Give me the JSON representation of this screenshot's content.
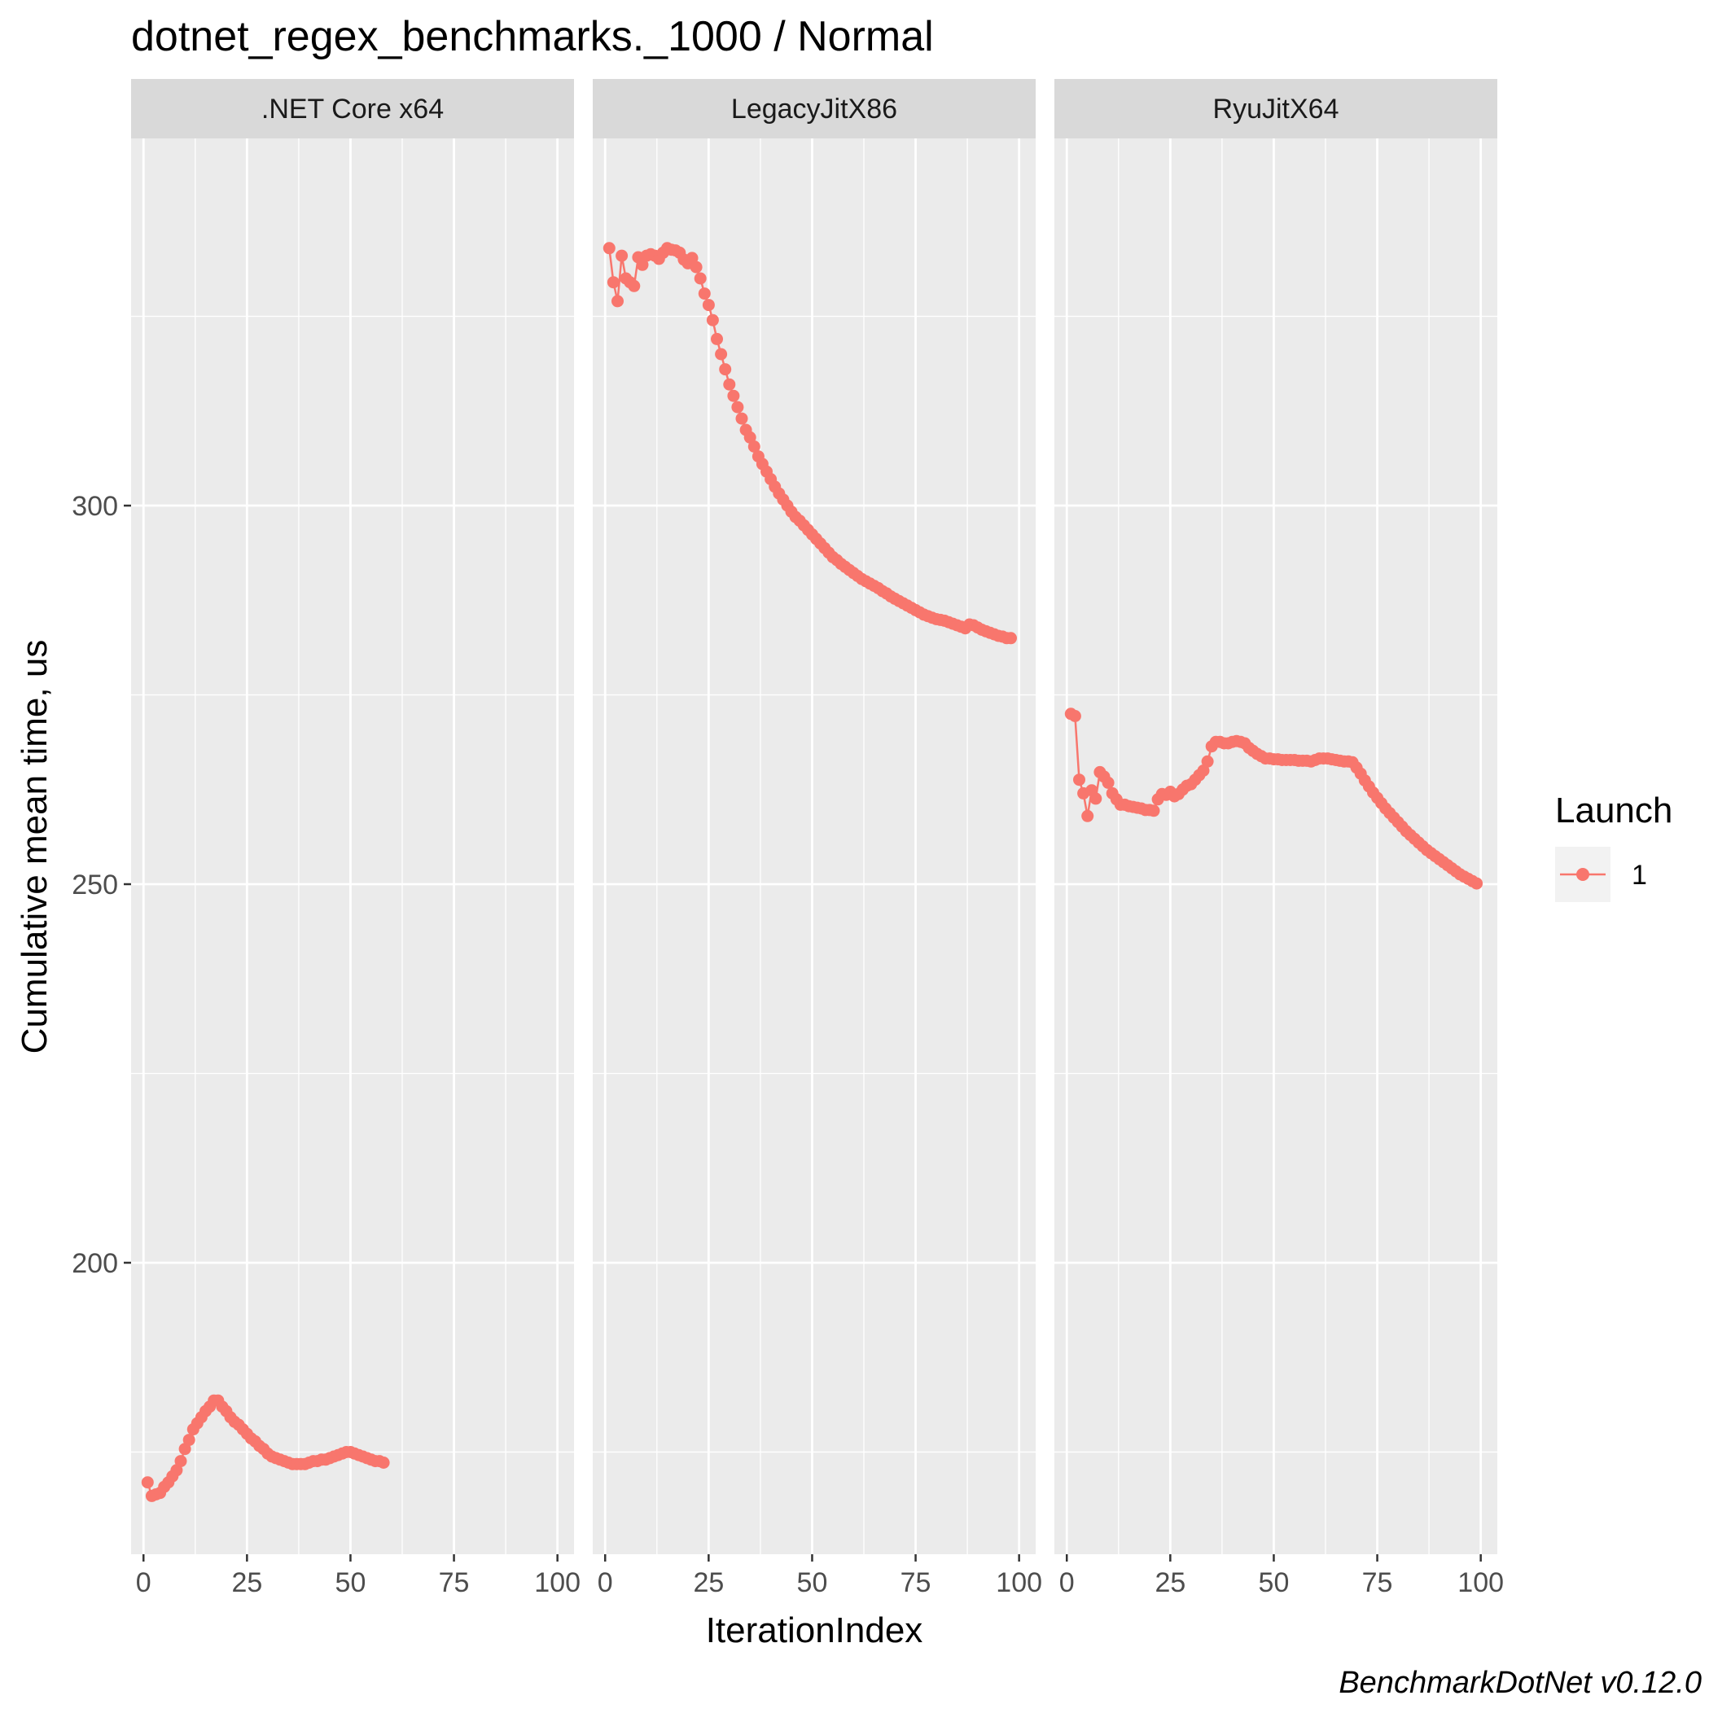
{
  "chart_data": {
    "type": "line",
    "title": "dotnet_regex_benchmarks._1000 / Normal",
    "xlabel": "IterationIndex",
    "ylabel": "Cumulative mean time, us",
    "caption": "BenchmarkDotNet v0.12.0",
    "xlim": [
      -3,
      104
    ],
    "ylim": [
      161.5,
      348.5
    ],
    "x_ticks": [
      0,
      25,
      50,
      75,
      100
    ],
    "x_tick_labels": [
      "0",
      "25",
      "50",
      "75",
      "100"
    ],
    "y_ticks": [
      200,
      250,
      300
    ],
    "y_tick_labels": [
      "200",
      "250",
      "300"
    ],
    "legend": {
      "title": "Launch",
      "position": "right",
      "entries": [
        {
          "label": "1",
          "color": "#F8766D"
        }
      ]
    },
    "series_color": "#F8766D",
    "grid": true,
    "facets": [
      {
        "label": ".NET Core x64",
        "series": [
          {
            "name": "1",
            "x": [
              1,
              2,
              3,
              4,
              5,
              6,
              7,
              8,
              9,
              10,
              11,
              12,
              13,
              14,
              15,
              16,
              17,
              18,
              19,
              20,
              21,
              22,
              23,
              24,
              25,
              26,
              27,
              28,
              29,
              30,
              31,
              32,
              33,
              34,
              35,
              36,
              37,
              38,
              39,
              40,
              41,
              42,
              43,
              44,
              45,
              46,
              47,
              48,
              49,
              50,
              51,
              52,
              53,
              54,
              55,
              56,
              57,
              58
            ],
            "y": [
              171.0,
              169.2,
              169.4,
              169.6,
              170.4,
              171.0,
              171.8,
              172.6,
              173.8,
              175.4,
              176.6,
              178.0,
              178.8,
              179.6,
              180.4,
              181.0,
              181.8,
              181.8,
              181.0,
              180.4,
              179.6,
              179.0,
              178.6,
              178.0,
              177.4,
              176.8,
              176.4,
              175.8,
              175.4,
              174.8,
              174.4,
              174.2,
              174.0,
              173.8,
              173.6,
              173.4,
              173.4,
              173.4,
              173.4,
              173.6,
              173.8,
              173.8,
              174.0,
              174.0,
              174.2,
              174.4,
              174.6,
              174.8,
              175.0,
              175.0,
              174.8,
              174.6,
              174.4,
              174.2,
              174.0,
              173.8,
              173.8,
              173.6
            ]
          }
        ]
      },
      {
        "label": "LegacyJitX86",
        "series": [
          {
            "name": "1",
            "x": [
              1,
              2,
              3,
              4,
              5,
              6,
              7,
              8,
              9,
              10,
              11,
              12,
              13,
              14,
              15,
              16,
              17,
              18,
              19,
              20,
              21,
              22,
              23,
              24,
              25,
              26,
              27,
              28,
              29,
              30,
              31,
              32,
              33,
              34,
              35,
              36,
              37,
              38,
              39,
              40,
              41,
              42,
              43,
              44,
              45,
              46,
              47,
              48,
              49,
              50,
              51,
              52,
              53,
              54,
              55,
              56,
              57,
              58,
              59,
              60,
              61,
              62,
              63,
              64,
              65,
              66,
              67,
              68,
              69,
              70,
              71,
              72,
              73,
              74,
              75,
              76,
              77,
              78,
              79,
              80,
              81,
              82,
              83,
              84,
              85,
              86,
              87,
              88,
              89,
              90,
              91,
              92,
              93,
              94,
              95,
              96,
              97,
              98
            ],
            "y": [
              334.0,
              329.5,
              327.0,
              333.0,
              330.0,
              329.5,
              329.0,
              332.8,
              331.8,
              333.0,
              333.2,
              333.0,
              332.6,
              333.4,
              334.0,
              333.8,
              333.7,
              333.4,
              332.5,
              332.0,
              332.7,
              331.5,
              330.0,
              328.0,
              326.5,
              324.5,
              322.0,
              320.0,
              318.0,
              316.0,
              314.5,
              313.0,
              311.5,
              310.0,
              309.0,
              307.8,
              306.5,
              305.5,
              304.5,
              303.5,
              302.5,
              301.6,
              300.8,
              300.0,
              299.2,
              298.5,
              298.0,
              297.4,
              296.8,
              296.2,
              295.6,
              295.0,
              294.4,
              293.8,
              293.2,
              292.8,
              292.3,
              291.9,
              291.5,
              291.1,
              290.7,
              290.3,
              290.0,
              289.7,
              289.4,
              289.1,
              288.7,
              288.4,
              288.0,
              287.7,
              287.4,
              287.1,
              286.8,
              286.5,
              286.2,
              285.9,
              285.6,
              285.4,
              285.2,
              285.0,
              284.9,
              284.8,
              284.6,
              284.4,
              284.2,
              284.0,
              283.8,
              284.3,
              284.2,
              283.9,
              283.6,
              283.4,
              283.2,
              283.0,
              282.8,
              282.7,
              282.5,
              282.5
            ]
          }
        ]
      },
      {
        "label": "RyuJitX64",
        "series": [
          {
            "name": "1",
            "x": [
              1,
              2,
              3,
              4,
              5,
              6,
              7,
              8,
              9,
              10,
              11,
              12,
              13,
              14,
              15,
              16,
              17,
              18,
              19,
              20,
              21,
              22,
              23,
              24,
              25,
              26,
              27,
              28,
              29,
              30,
              31,
              32,
              33,
              34,
              35,
              36,
              37,
              38,
              39,
              40,
              41,
              42,
              43,
              44,
              45,
              46,
              47,
              48,
              49,
              50,
              51,
              52,
              53,
              54,
              55,
              56,
              57,
              58,
              59,
              60,
              61,
              62,
              63,
              64,
              65,
              66,
              67,
              68,
              69,
              70,
              71,
              72,
              73,
              74,
              75,
              76,
              77,
              78,
              79,
              80,
              81,
              82,
              83,
              84,
              85,
              86,
              87,
              88,
              89,
              90,
              91,
              92,
              93,
              94,
              95,
              96,
              97,
              98,
              99
            ],
            "y": [
              272.5,
              272.2,
              263.8,
              262.0,
              259.0,
              262.4,
              261.3,
              264.8,
              264.2,
              263.4,
              262.0,
              261.2,
              260.5,
              260.5,
              260.3,
              260.2,
              260.1,
              260.0,
              259.8,
              259.8,
              259.7,
              261.2,
              261.9,
              261.8,
              262.2,
              261.6,
              261.9,
              262.5,
              263.0,
              263.2,
              263.8,
              264.4,
              265.0,
              266.2,
              268.2,
              268.8,
              268.8,
              268.6,
              268.6,
              268.8,
              268.9,
              268.8,
              268.6,
              268.0,
              267.6,
              267.2,
              266.9,
              266.6,
              266.6,
              266.5,
              266.5,
              266.4,
              266.4,
              266.4,
              266.4,
              266.3,
              266.3,
              266.3,
              266.2,
              266.4,
              266.6,
              266.6,
              266.6,
              266.5,
              266.4,
              266.3,
              266.2,
              266.2,
              266.1,
              265.4,
              264.6,
              263.7,
              262.9,
              262.1,
              261.4,
              260.7,
              260.0,
              259.4,
              258.8,
              258.2,
              257.6,
              257.0,
              256.5,
              256.0,
              255.5,
              255.0,
              254.5,
              254.1,
              253.7,
              253.3,
              252.9,
              252.5,
              252.1,
              251.7,
              251.3,
              251.0,
              250.7,
              250.4,
              250.1
            ]
          }
        ]
      }
    ]
  }
}
